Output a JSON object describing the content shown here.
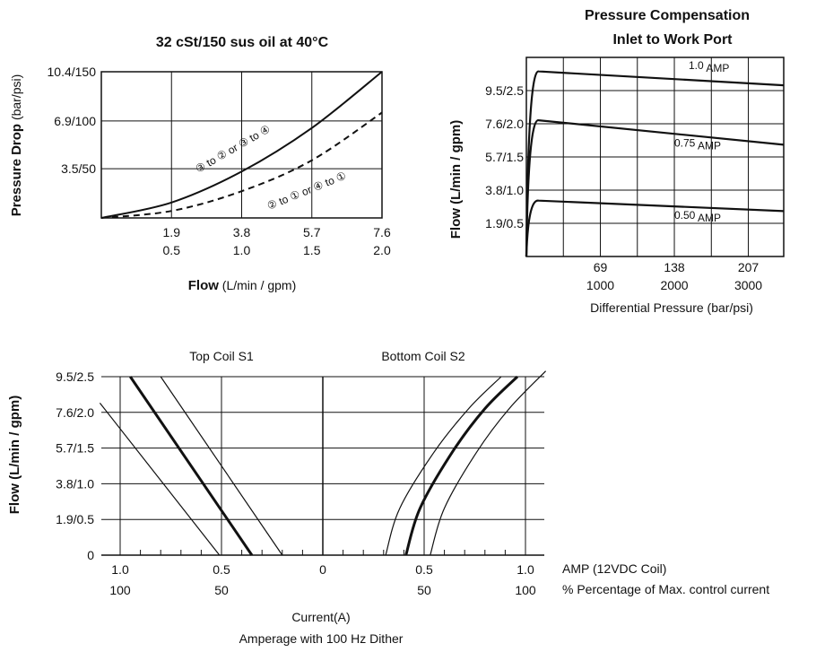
{
  "chart_data": [
    {
      "type": "line",
      "title": "32 cSt/150 sus oil at 40°C",
      "xlabel_bold": "Flow",
      "xlabel_rest": " (L/min / gpm)",
      "ylabel_bold": "Pressure Drop",
      "ylabel_rest": " (bar/psi)",
      "x_ticks_top": [
        "1.9",
        "3.8",
        "5.7",
        "7.6"
      ],
      "x_ticks_bottom": [
        "0.5",
        "1.0",
        "1.5",
        "2.0"
      ],
      "y_ticks": [
        "3.5/50",
        "6.9/100",
        "10.4/150"
      ],
      "xlim": [
        0,
        7.6
      ],
      "ylim": [
        0,
        10.4
      ],
      "series": [
        {
          "name": "③ to ② or ③ to ④",
          "style": "solid",
          "x": [
            0,
            1.9,
            3.8,
            5.7,
            7.6
          ],
          "y": [
            0,
            1.1,
            3.3,
            6.4,
            10.4
          ]
        },
        {
          "name": "② to ① or ④ to ①",
          "style": "dashed",
          "x": [
            0,
            1.9,
            3.8,
            5.7,
            7.6
          ],
          "y": [
            0,
            0.5,
            1.9,
            4.1,
            7.5
          ]
        }
      ]
    },
    {
      "type": "line",
      "title_line1": "Pressure Compensation",
      "title_line2": "Inlet to Work Port",
      "xlabel": "Differential Pressure (bar/psi)",
      "ylabel": "Flow  (L/min / gpm)",
      "x_ticks_top": [
        "69",
        "138",
        "207"
      ],
      "x_ticks_bottom": [
        "1000",
        "2000",
        "3000"
      ],
      "y_ticks": [
        "1.9/0.5",
        "3.8/1.0",
        "5.7/1.5",
        "7.6/2.0",
        "9.5/2.5"
      ],
      "xlim": [
        0,
        240
      ],
      "ylim": [
        0,
        11.4
      ],
      "series": [
        {
          "name": "1.0",
          "unit": "AMP",
          "x": [
            0,
            8,
            240
          ],
          "y": [
            0,
            10.6,
            9.8
          ]
        },
        {
          "name": "0.75",
          "unit": "AMP",
          "x": [
            0,
            8,
            240
          ],
          "y": [
            0,
            7.8,
            6.4
          ]
        },
        {
          "name": "0.50",
          "unit": "AMP",
          "x": [
            0,
            8,
            240
          ],
          "y": [
            0,
            3.2,
            2.6
          ]
        }
      ]
    },
    {
      "type": "line",
      "coil_left": "Top Coil  S1",
      "coil_right": "Bottom Coil  S2",
      "ylabel": "Flow  (L/min / gpm)",
      "y_ticks": [
        "0",
        "1.9/0.5",
        "3.8/1.0",
        "5.7/1.5",
        "7.6/2.0",
        "9.5/2.5"
      ],
      "x_ticks_top": [
        "1.0",
        "0.5",
        "0",
        "0.5",
        "1.0"
      ],
      "x_ticks_bottom": [
        "100",
        "50",
        "",
        "50",
        "100"
      ],
      "x_note_top": "AMP (12VDC Coil)",
      "x_note_bottom": "%  Percentage of Max. control current",
      "xlabel": "Current(A)",
      "caption": "Amperage with 100 Hz Dither",
      "xlim": [
        -1.1,
        1.1
      ],
      "ylim": [
        0,
        9.5
      ],
      "series": [
        {
          "coil": "S1",
          "style": "thin",
          "x": [
            -1.1,
            -0.51
          ],
          "y": [
            8.1,
            0
          ]
        },
        {
          "coil": "S1",
          "style": "bold",
          "x": [
            -0.95,
            -0.35
          ],
          "y": [
            9.5,
            0
          ]
        },
        {
          "coil": "S1",
          "style": "thin",
          "x": [
            -0.8,
            -0.2
          ],
          "y": [
            9.5,
            0
          ]
        },
        {
          "coil": "S2",
          "style": "thin",
          "x": [
            0.31,
            0.38,
            0.55,
            0.72,
            0.88
          ],
          "y": [
            0,
            2.5,
            5.5,
            7.8,
            9.5
          ]
        },
        {
          "coil": "S2",
          "style": "bold",
          "x": [
            0.41,
            0.48,
            0.64,
            0.8,
            0.96
          ],
          "y": [
            0,
            2.5,
            5.5,
            7.8,
            9.5
          ]
        },
        {
          "coil": "S2",
          "style": "thin",
          "x": [
            0.53,
            0.6,
            0.76,
            0.92,
            1.1
          ],
          "y": [
            0,
            2.5,
            5.5,
            7.8,
            9.8
          ]
        }
      ]
    }
  ]
}
